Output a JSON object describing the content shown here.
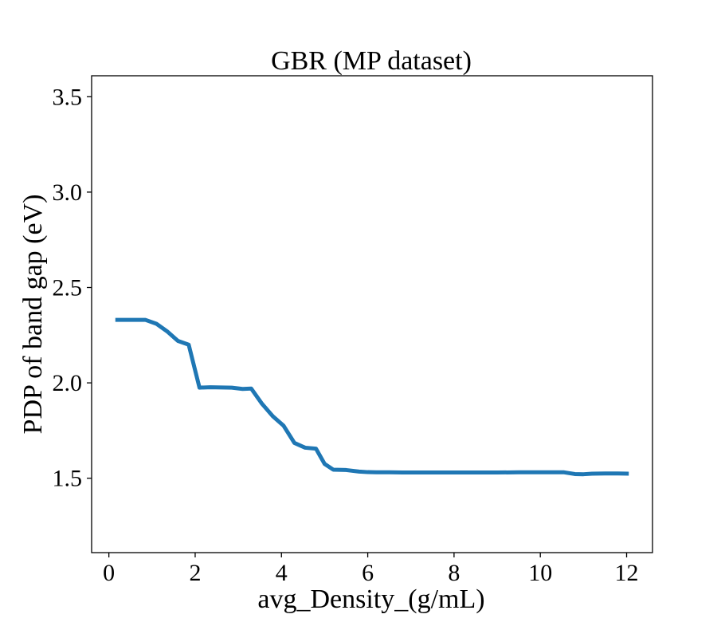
{
  "chart_data": {
    "type": "line",
    "title": "GBR (MP dataset)",
    "xlabel": "avg_Density_(g/mL)",
    "ylabel": "PDP of band gap (eV)",
    "xlim": [
      -0.4,
      12.6
    ],
    "ylim": [
      1.11,
      3.61
    ],
    "xticks": [
      0,
      2,
      4,
      6,
      8,
      10,
      12
    ],
    "xtick_labels": [
      "0",
      "2",
      "4",
      "6",
      "8",
      "10",
      "12"
    ],
    "yticks": [
      1.5,
      2.0,
      2.5,
      3.0,
      3.5
    ],
    "ytick_labels": [
      "1.5",
      "2.0",
      "2.5",
      "3.0",
      "3.5"
    ],
    "grid": false,
    "line_color": "#1f77b4",
    "series": [
      {
        "x": [
          0.15,
          0.4,
          0.6,
          0.85,
          1.1,
          1.35,
          1.6,
          1.85,
          2.1,
          2.35,
          2.6,
          2.85,
          3.1,
          3.3,
          3.55,
          3.8,
          4.05,
          4.3,
          4.55,
          4.8,
          5.0,
          5.2,
          5.5,
          5.8,
          6.0,
          6.2,
          6.5,
          6.8,
          7.0,
          7.5,
          8.0,
          8.5,
          9.0,
          9.5,
          10.0,
          10.3,
          10.55,
          10.8,
          11.0,
          11.2,
          11.5,
          11.8,
          12.05
        ],
        "y": [
          2.33,
          2.33,
          2.33,
          2.33,
          2.31,
          2.27,
          2.22,
          2.2,
          1.975,
          1.977,
          1.976,
          1.975,
          1.968,
          1.97,
          1.89,
          1.825,
          1.775,
          1.685,
          1.66,
          1.655,
          1.575,
          1.545,
          1.543,
          1.535,
          1.532,
          1.531,
          1.531,
          1.53,
          1.53,
          1.53,
          1.53,
          1.53,
          1.53,
          1.531,
          1.531,
          1.531,
          1.531,
          1.522,
          1.521,
          1.524,
          1.525,
          1.525,
          1.524
        ]
      }
    ]
  }
}
